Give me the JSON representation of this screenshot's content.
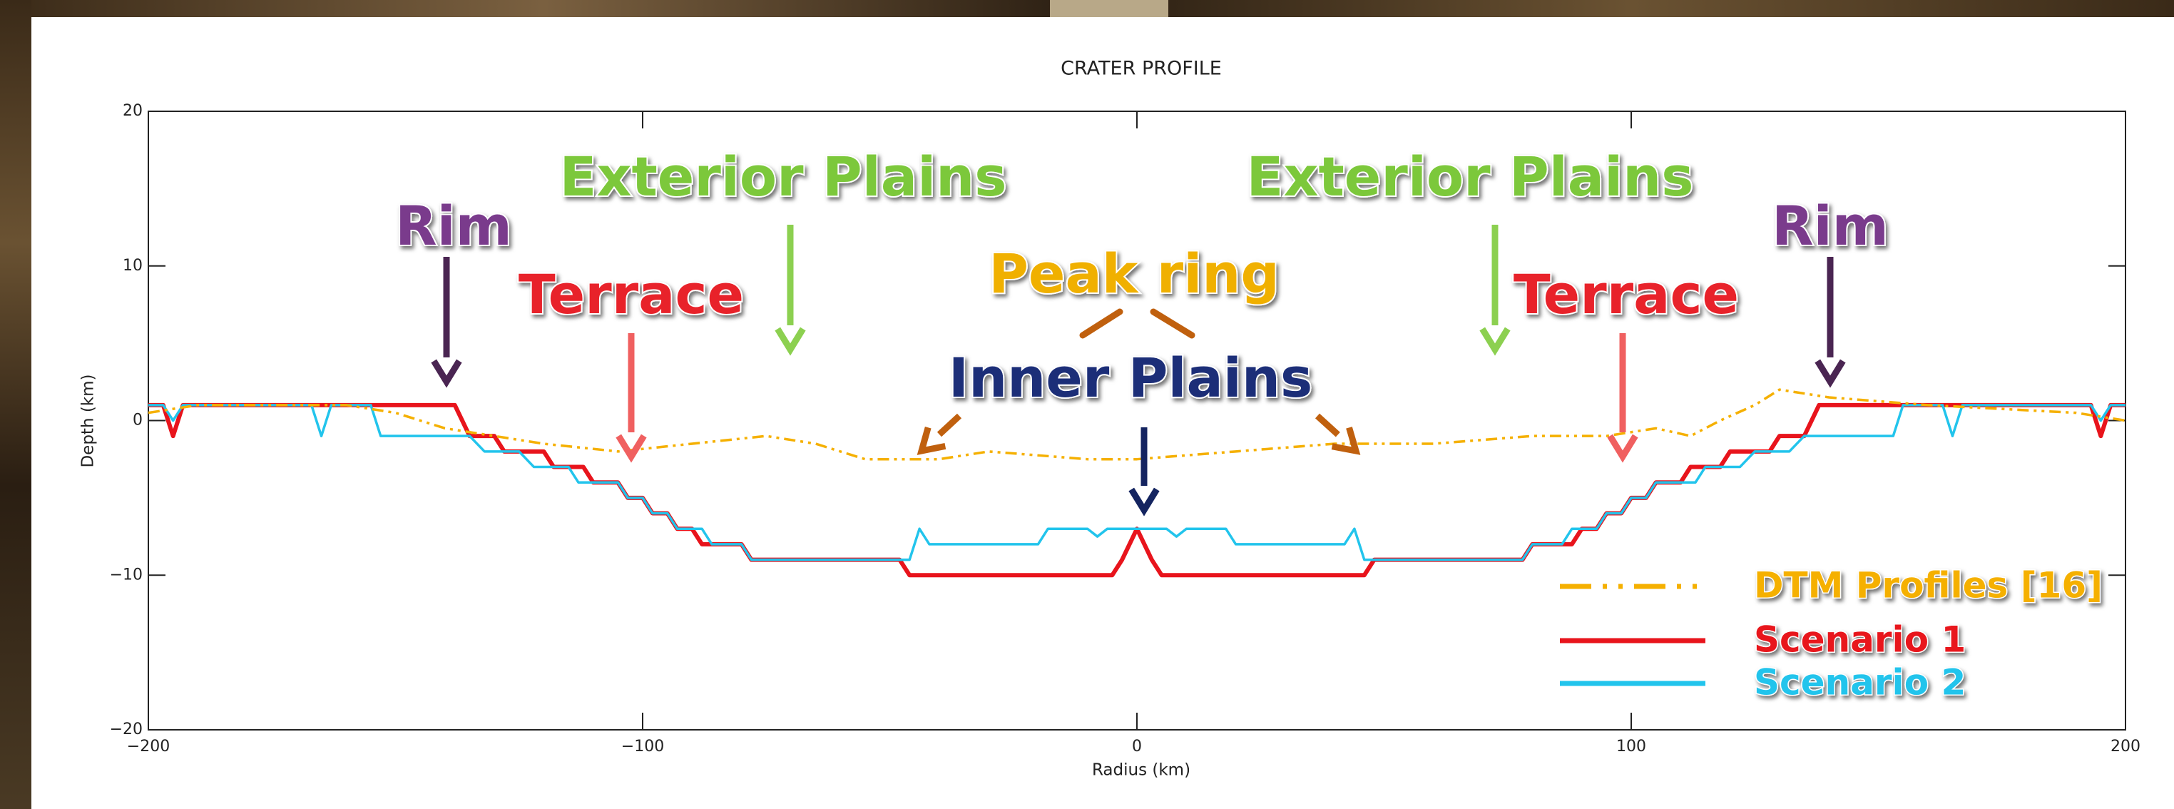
{
  "chart_data": {
    "type": "line",
    "title": "CRATER PROFILE",
    "xlabel": "Radius (km)",
    "ylabel": "Depth (km)",
    "xlim": [
      -200,
      200
    ],
    "ylim": [
      -20,
      20
    ],
    "xticks": [
      {
        "value": -200,
        "label": "−200"
      },
      {
        "value": -100,
        "label": "−100"
      },
      0,
      100,
      200
    ],
    "yticks": [
      {
        "value": -20,
        "label": "−20"
      },
      {
        "value": -10,
        "label": "−10"
      },
      0,
      10,
      20
    ],
    "legend": "lower right",
    "series": [
      {
        "name": "DTM Profiles [16]",
        "color": "#f5b000",
        "style": "dashdot",
        "x": [
          -200,
          -190,
          -160,
          -150,
          -140,
          -130,
          -120,
          -105,
          -90,
          -75,
          -65,
          -55,
          -40,
          -30,
          -10,
          0,
          20,
          40,
          60,
          80,
          95,
          105,
          112,
          118,
          125,
          130,
          140,
          160,
          190,
          200
        ],
        "values": [
          0.5,
          1,
          1,
          0.5,
          -0.5,
          -1,
          -1.5,
          -2,
          -1.5,
          -1,
          -1.5,
          -2.5,
          -2.5,
          -2,
          -2.5,
          -2.5,
          -2,
          -1.5,
          -1.5,
          -1,
          -1,
          -0.5,
          -1,
          0,
          1,
          2,
          1.5,
          1,
          0.5,
          0
        ]
      },
      {
        "name": "Scenario 1",
        "color": "#e8141c",
        "style": "solid",
        "x": [
          -200,
          -197,
          -195,
          -193,
          -138,
          -135,
          -130,
          -128,
          -120,
          -118,
          -112,
          -110,
          -105,
          -103,
          -100,
          -98,
          -95,
          -93,
          -90,
          -88,
          -80,
          -78,
          -48,
          -46,
          -5,
          -3,
          0,
          3,
          5,
          46,
          48,
          78,
          80,
          88,
          90,
          93,
          95,
          98,
          100,
          103,
          105,
          110,
          112,
          118,
          120,
          128,
          130,
          135,
          138,
          193,
          195,
          197,
          200
        ],
        "values": [
          1,
          1,
          -1,
          1,
          1,
          -1,
          -1,
          -2,
          -2,
          -3,
          -3,
          -4,
          -4,
          -5,
          -5,
          -6,
          -6,
          -7,
          -7,
          -8,
          -8,
          -9,
          -9,
          -10,
          -10,
          -9,
          -7,
          -9,
          -10,
          -10,
          -9,
          -9,
          -8,
          -8,
          -7,
          -7,
          -6,
          -6,
          -5,
          -5,
          -4,
          -4,
          -3,
          -3,
          -2,
          -2,
          -1,
          -1,
          1,
          1,
          -1,
          1,
          1
        ]
      },
      {
        "name": "Scenario 2",
        "color": "#22c4ec",
        "style": "solid",
        "x": [
          -200,
          -197,
          -195,
          -193,
          -167,
          -165,
          -163,
          -155,
          -153,
          -135,
          -132,
          -125,
          -122,
          -115,
          -113,
          -105,
          -103,
          -100,
          -98,
          -95,
          -93,
          -88,
          -86,
          -80,
          -78,
          -46,
          -44,
          -42,
          -20,
          -18,
          -10,
          -8,
          -6,
          6,
          8,
          10,
          18,
          20,
          42,
          44,
          46,
          78,
          80,
          86,
          88,
          93,
          95,
          98,
          100,
          103,
          105,
          113,
          115,
          122,
          125,
          132,
          135,
          153,
          155,
          163,
          165,
          167,
          193,
          195,
          197,
          200
        ],
        "values": [
          1,
          1,
          0,
          1,
          1,
          -1,
          1,
          1,
          -1,
          -1,
          -2,
          -2,
          -3,
          -3,
          -4,
          -4,
          -5,
          -5,
          -6,
          -6,
          -7,
          -7,
          -8,
          -8,
          -9,
          -9,
          -7,
          -8,
          -8,
          -7,
          -7,
          -7.5,
          -7,
          -7,
          -7.5,
          -7,
          -7,
          -8,
          -8,
          -7,
          -9,
          -9,
          -8,
          -8,
          -7,
          -7,
          -6,
          -6,
          -5,
          -5,
          -4,
          -4,
          -3,
          -3,
          -2,
          -2,
          -1,
          -1,
          1,
          1,
          -1,
          1,
          1,
          0,
          1,
          1
        ]
      }
    ],
    "annotations": [
      {
        "text": "Rim",
        "color": "#7a3a8c",
        "arrow_color": "#4a2552"
      },
      {
        "text": "Terrace",
        "color": "#e8242c",
        "arrow_color": "#f06060"
      },
      {
        "text": "Exterior Plains",
        "color": "#7cc83a",
        "arrow_color": "#8cd050"
      },
      {
        "text": "Peak ring",
        "color": "#f0b000",
        "arrow_color": "#c0600e"
      },
      {
        "text": "Inner Plains",
        "color": "#1c2e78",
        "arrow_color": "#142460"
      },
      {
        "text": "Exterior Plains",
        "color": "#7cc83a",
        "arrow_color": "#8cd050"
      },
      {
        "text": "Terrace",
        "color": "#e8242c",
        "arrow_color": "#f06060"
      },
      {
        "text": "Rim",
        "color": "#7a3a8c",
        "arrow_color": "#4a2552"
      }
    ]
  }
}
